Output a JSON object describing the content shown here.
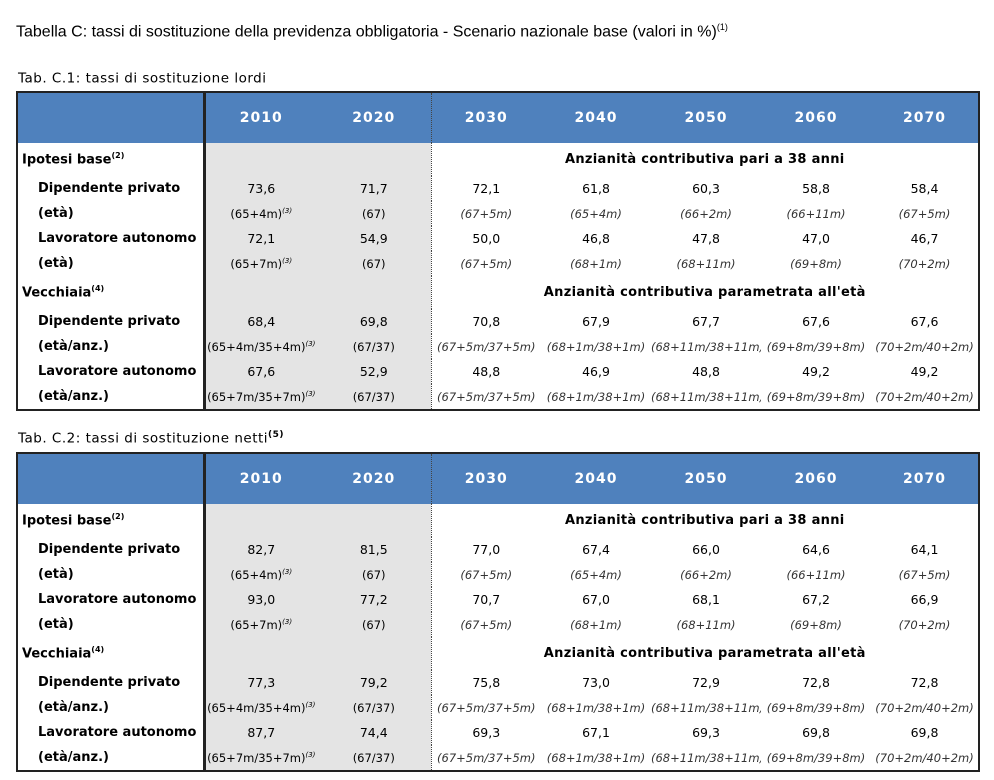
{
  "title": "Tabella C: tassi di sostituzione della previdenza obbligatoria - Scenario nazionale base (valori in %)",
  "title_note": "(1)",
  "years": [
    "2010",
    "2020",
    "2030",
    "2040",
    "2050",
    "2060",
    "2070"
  ],
  "tables": [
    {
      "title": "Tab. C.1: tassi di sostituzione lordi",
      "title_note": "",
      "groups": [
        {
          "label": "Ipotesi base",
          "note": "(2)",
          "desc": "Anzianità contributiva pari a 38 anni",
          "rows": [
            {
              "label": "Dipendente privato",
              "values": [
                "73,6",
                "71,7",
                "72,1",
                "61,8",
                "60,3",
                "58,8",
                "58,4"
              ]
            },
            {
              "label": "(età)",
              "values": [
                "(65+4m)",
                "(67)",
                "(67+5m)",
                "(65+4m)",
                "(66+2m)",
                "(66+11m)",
                "(67+5m)"
              ],
              "age": true
            },
            {
              "label": "Lavoratore autonomo",
              "values": [
                "72,1",
                "54,9",
                "50,0",
                "46,8",
                "47,8",
                "47,0",
                "46,7"
              ]
            },
            {
              "label": "(età)",
              "values": [
                "(65+7m)",
                "(67)",
                "(67+5m)",
                "(68+1m)",
                "(68+11m)",
                "(69+8m)",
                "(70+2m)"
              ],
              "age": true
            }
          ]
        },
        {
          "label": "Vecchiaia",
          "note": "(4)",
          "desc": "Anzianità contributiva parametrata all'età",
          "rows": [
            {
              "label": "Dipendente privato",
              "values": [
                "68,4",
                "69,8",
                "70,8",
                "67,9",
                "67,7",
                "67,6",
                "67,6"
              ]
            },
            {
              "label": "(età/anz.)",
              "values": [
                "(65+4m/35+4m)",
                "(67/37)",
                "(67+5m/37+5m)",
                "(68+1m/38+1m)",
                "(68+11m/38+11m)",
                "(69+8m/39+8m)",
                "(70+2m/40+2m)"
              ],
              "age": true
            },
            {
              "label": "Lavoratore autonomo",
              "values": [
                "67,6",
                "52,9",
                "48,8",
                "46,9",
                "48,8",
                "49,2",
                "49,2"
              ]
            },
            {
              "label": "(età/anz.)",
              "values": [
                "(65+7m/35+7m)",
                "(67/37)",
                "(67+5m/37+5m)",
                "(68+1m/38+1m)",
                "(68+11m/38+11m)",
                "(69+8m/39+8m)",
                "(70+2m/40+2m)"
              ],
              "age": true
            }
          ]
        }
      ]
    },
    {
      "title": "Tab. C.2: tassi di sostituzione netti",
      "title_note": "(5)",
      "groups": [
        {
          "label": "Ipotesi base",
          "note": "(2)",
          "desc": "Anzianità contributiva pari a 38 anni",
          "rows": [
            {
              "label": "Dipendente privato",
              "values": [
                "82,7",
                "81,5",
                "77,0",
                "67,4",
                "66,0",
                "64,6",
                "64,1"
              ]
            },
            {
              "label": "(età)",
              "values": [
                "(65+4m)",
                "(67)",
                "(67+5m)",
                "(65+4m)",
                "(66+2m)",
                "(66+11m)",
                "(67+5m)"
              ],
              "age": true
            },
            {
              "label": "Lavoratore autonomo",
              "values": [
                "93,0",
                "77,2",
                "70,7",
                "67,0",
                "68,1",
                "67,2",
                "66,9"
              ]
            },
            {
              "label": "(età)",
              "values": [
                "(65+7m)",
                "(67)",
                "(67+5m)",
                "(68+1m)",
                "(68+11m)",
                "(69+8m)",
                "(70+2m)"
              ],
              "age": true
            }
          ]
        },
        {
          "label": "Vecchiaia",
          "note": "(4)",
          "desc": "Anzianità contributiva parametrata all'età",
          "rows": [
            {
              "label": "Dipendente privato",
              "values": [
                "77,3",
                "79,2",
                "75,8",
                "73,0",
                "72,9",
                "72,8",
                "72,8"
              ]
            },
            {
              "label": "(età/anz.)",
              "values": [
                "(65+4m/35+4m)",
                "(67/37)",
                "(67+5m/37+5m)",
                "(68+1m/38+1m)",
                "(68+11m/38+11m)",
                "(69+8m/39+8m)",
                "(70+2m/40+2m)"
              ],
              "age": true
            },
            {
              "label": "Lavoratore autonomo",
              "values": [
                "87,7",
                "74,4",
                "69,3",
                "67,1",
                "69,3",
                "69,8",
                "69,8"
              ]
            },
            {
              "label": "(età/anz.)",
              "values": [
                "(65+7m/35+7m)",
                "(67/37)",
                "(67+5m/37+5m)",
                "(68+1m/38+1m)",
                "(68+11m/38+11m)",
                "(69+8m/39+8m)",
                "(70+2m/40+2m)"
              ],
              "age": true
            }
          ]
        }
      ]
    }
  ],
  "age_note_2010": "(3)"
}
